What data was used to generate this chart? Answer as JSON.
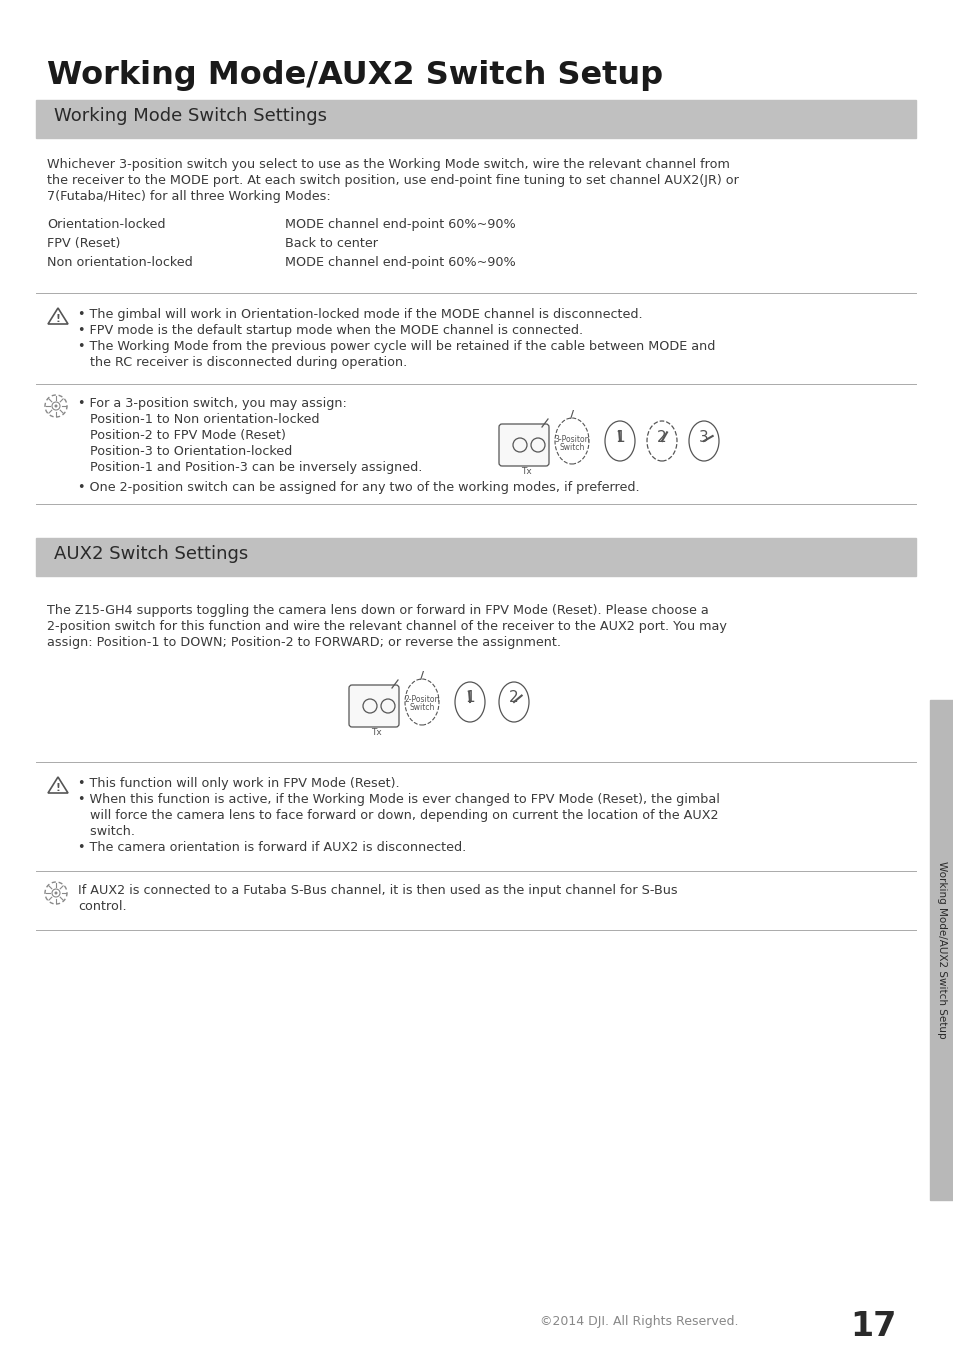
{
  "page_title": "Working Mode/AUX2 Switch Setup",
  "section1_title": "Working Mode Switch Settings",
  "section1_header_bg": "#c0c0c0",
  "section2_title": "AUX2 Switch Settings",
  "section2_header_bg": "#c0c0c0",
  "bg_color": "#ffffff",
  "text_color": "#3a3a3a",
  "title_color": "#1a1a1a",
  "page_number": "17",
  "footer_text": "©2014 DJI. All Rights Reserved.",
  "sidebar_text": "Working Mode/AUX2 Switch Setup",
  "sidebar_bg": "#b8b8b8",
  "para1_line1": "Whichever 3-position switch you select to use as the Working Mode switch, wire the relevant channel from",
  "para1_line2": "the receiver to the MODE port. At each switch position, use end-point fine tuning to set channel AUX2(JR) or",
  "para1_line3": "7(Futaba/Hitec) for all three Working Modes:",
  "table_rows": [
    [
      "Orientation-locked",
      "MODE channel end-point 60%~90%"
    ],
    [
      "FPV (Reset)",
      "Back to center"
    ],
    [
      "Non orientation-locked",
      "MODE channel end-point 60%~90%"
    ]
  ],
  "warn1_lines": [
    "• The gimbal will work in Orientation-locked mode if the MODE channel is disconnected.",
    "• FPV mode is the default startup mode when the MODE channel is connected.",
    "• The Working Mode from the previous power cycle will be retained if the cable between MODE and",
    "   the RC receiver is disconnected during operation."
  ],
  "tip1_lines": [
    "• For a 3-position switch, you may assign:",
    "   Position-1 to Non orientation-locked",
    "   Position-2 to FPV Mode (Reset)",
    "   Position-3 to Orientation-locked",
    "   Position-1 and Position-3 can be inversely assigned.",
    "• One 2-position switch can be assigned for any two of the working modes, if preferred."
  ],
  "section2_para_lines": [
    "The Z15-GH4 supports toggling the camera lens down or forward in FPV Mode (Reset). Please choose a",
    "2-position switch for this function and wire the relevant channel of the receiver to the AUX2 port. You may",
    "assign: Position-1 to DOWN; Position-2 to FORWARD; or reverse the assignment."
  ],
  "warn2_lines": [
    "• This function will only work in FPV Mode (Reset).",
    "• When this function is active, if the Working Mode is ever changed to FPV Mode (Reset), the gimbal",
    "   will force the camera lens to face forward or down, depending on current the location of the AUX2",
    "   switch.",
    "• The camera orientation is forward if AUX2 is disconnected."
  ],
  "tip2_lines": [
    "If AUX2 is connected to a Futaba S-Bus channel, it is then used as the input channel for S-Bus",
    "control."
  ]
}
